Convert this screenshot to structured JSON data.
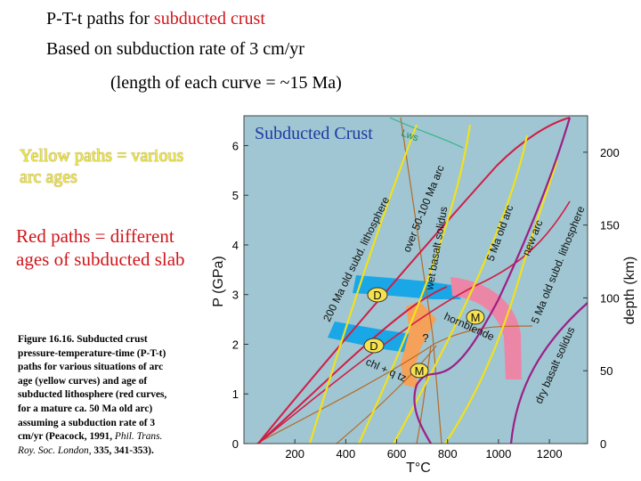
{
  "header": {
    "line1_prefix": "P-T-t paths for ",
    "line1_highlight": "subducted crust",
    "line2": "Based on subduction rate of 3 cm/yr",
    "line3": "(length of each curve = ~15 Ma)"
  },
  "notes": {
    "yellow": "Yellow paths = various arc ages",
    "red": "Red paths = different ages of subducted slab"
  },
  "caption": {
    "main": "Figure 16.16. Subducted crust pressure-temperature-time (P-T-t) paths for various situations of arc age (yellow curves) and age of subducted lithosphere (red curves, for a mature ca. 50 Ma old arc) assuming a subduction rate of 3 cm/yr (Peacock, 1991, ",
    "journal": "Phil. Trans. Roy. Soc. London,",
    "ref": " 335, 341-353)."
  },
  "figure": {
    "inset_title": "Subducted Crust",
    "x_label": "T°C",
    "y_label": "P (GPa)",
    "y2_label": "depth (km)",
    "x_ticks": [
      "200",
      "400",
      "600",
      "800",
      "1000",
      "1200"
    ],
    "y_ticks": [
      "0",
      "1",
      "2",
      "3",
      "4",
      "5",
      "6"
    ],
    "y2_ticks": [
      "0",
      "50",
      "100",
      "150",
      "200"
    ],
    "curve_labels": {
      "old_litho_200": "200 Ma old subd. lithosphere",
      "arc_50_100": "over 50-100 Ma arc",
      "wet_solidus": "wet basalt solidus",
      "arc_5": "5 Ma old arc",
      "new_arc": "new arc",
      "old_litho_5": "5 Ma old subd. lithosphere",
      "dry_solidus": "dry basalt solidus",
      "hornblende": "hornblende",
      "chl_qtz": "chl + q tz",
      "lws": "Lws"
    },
    "facies": {
      "d_upper": "D",
      "d_lower": "D",
      "m_upper": "M",
      "m_lower": "M",
      "question": "?"
    },
    "colors": {
      "background": "#9fc6d2",
      "blue_band": "#19a7e8",
      "pink_band": "#ec86a6",
      "orange_band": "#f6a15a",
      "yellow_paths": "#f2e11b",
      "red_paths": "#d11d46",
      "solidus": "#9c1f86",
      "thin_curves": "#b86a28"
    }
  }
}
